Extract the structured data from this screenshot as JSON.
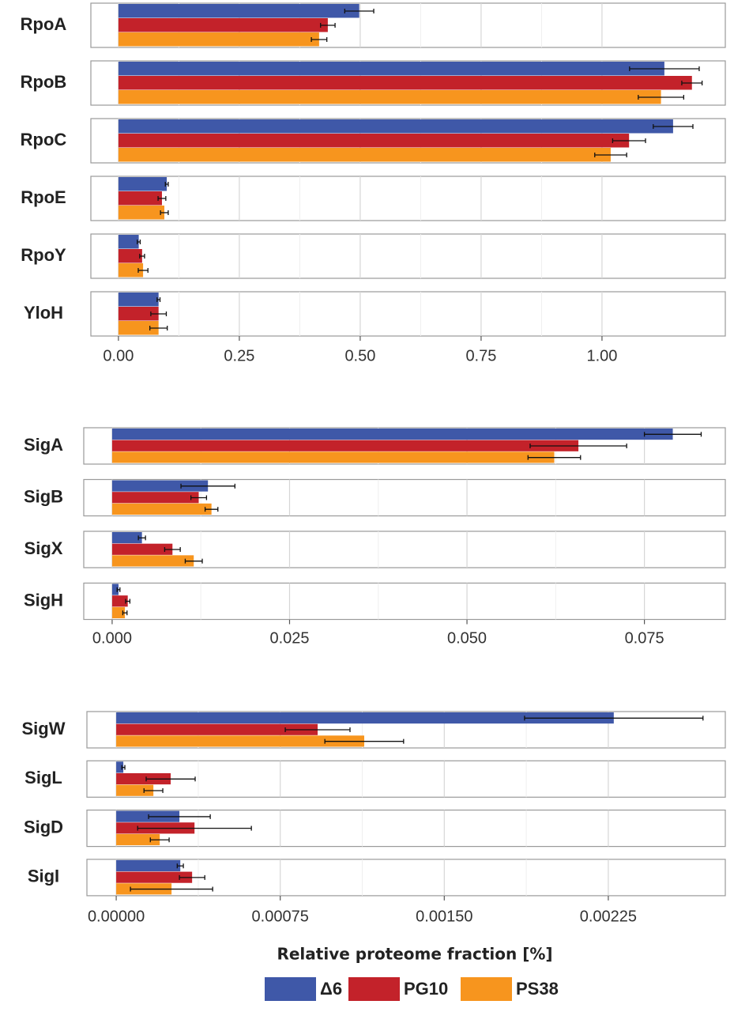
{
  "legend": [
    {
      "name": "Δ6",
      "color": "#3f58a8"
    },
    {
      "name": "PG10",
      "color": "#c3222a"
    },
    {
      "name": "PS38",
      "color": "#f7951e"
    }
  ],
  "chart_data": [
    {
      "type": "bar",
      "orientation": "horizontal",
      "categories": [
        "RpoA",
        "RpoB",
        "RpoC",
        "RpoE",
        "RpoY",
        "YloH"
      ],
      "series": [
        {
          "values": [
            0.498,
            1.129,
            1.147,
            0.1,
            0.042,
            0.083
          ],
          "errors": [
            0.03,
            0.072,
            0.041,
            0.003,
            0.003,
            0.003
          ]
        },
        {
          "values": [
            0.433,
            1.186,
            1.056,
            0.09,
            0.049,
            0.083
          ],
          "errors": [
            0.015,
            0.021,
            0.034,
            0.008,
            0.005,
            0.016
          ]
        },
        {
          "values": [
            0.415,
            1.122,
            1.018,
            0.095,
            0.051,
            0.083
          ],
          "errors": [
            0.016,
            0.047,
            0.033,
            0.008,
            0.01,
            0.018
          ]
        }
      ],
      "xlim": [
        -0.057,
        1.255
      ],
      "xticks": [
        {
          "value": 0,
          "label": "0.00"
        },
        0.25,
        {
          "value": 0.5,
          "label": "0.50"
        },
        0.75,
        {
          "value": 1,
          "label": "1.00"
        }
      ],
      "grid": true
    },
    {
      "type": "bar",
      "orientation": "horizontal",
      "categories": [
        "SigA",
        "SigB",
        "SigX",
        "SigH"
      ],
      "series": [
        {
          "values": [
            0.079,
            0.0135,
            0.0042,
            0.0009
          ],
          "errors": [
            0.004,
            0.0038,
            0.0005,
            0.0002
          ]
        },
        {
          "values": [
            0.0657,
            0.0122,
            0.0085,
            0.0022
          ],
          "errors": [
            0.0068,
            0.0011,
            0.0011,
            0.0003
          ]
        },
        {
          "values": [
            0.0623,
            0.014,
            0.0115,
            0.0018
          ],
          "errors": [
            0.0037,
            0.0009,
            0.0012,
            0.0003
          ]
        }
      ],
      "xlim": [
        -0.004,
        0.0864
      ],
      "xticks": [
        {
          "value": 0,
          "label": "0.000"
        },
        0.025,
        {
          "value": 0.05,
          "label": "0.050"
        },
        0.075
      ],
      "grid": true
    },
    {
      "type": "bar",
      "orientation": "horizontal",
      "categories": [
        "SigW",
        "SigL",
        "SigD",
        "SigI"
      ],
      "series": [
        {
          "values": [
            0.002275,
            3.25e-05,
            0.000289,
            0.000293
          ],
          "errors": [
            0.000408,
            7e-06,
            0.000141,
            1.4e-05
          ]
        },
        {
          "values": [
            0.000921,
            0.000249,
            0.000358,
            0.000347
          ],
          "errors": [
            0.000148,
            0.000112,
            0.00026,
            5.8e-05
          ]
        },
        {
          "values": [
            0.001134,
            0.00017,
            0.000199,
            0.000253
          ],
          "errors": [
            0.00018,
            4.3e-05,
            4.3e-05,
            0.000188
          ]
        }
      ],
      "xlim": [
        -0.000134,
        0.002785
      ],
      "xticks": [
        {
          "value": 0,
          "label": "0.00000"
        },
        0.00075,
        {
          "value": 0.0015,
          "label": "0.00150"
        },
        {
          "value": 0.00225,
          "label": "0.00225"
        }
      ],
      "grid": true,
      "xlabel": "Relative proteome fraction [%]"
    }
  ]
}
